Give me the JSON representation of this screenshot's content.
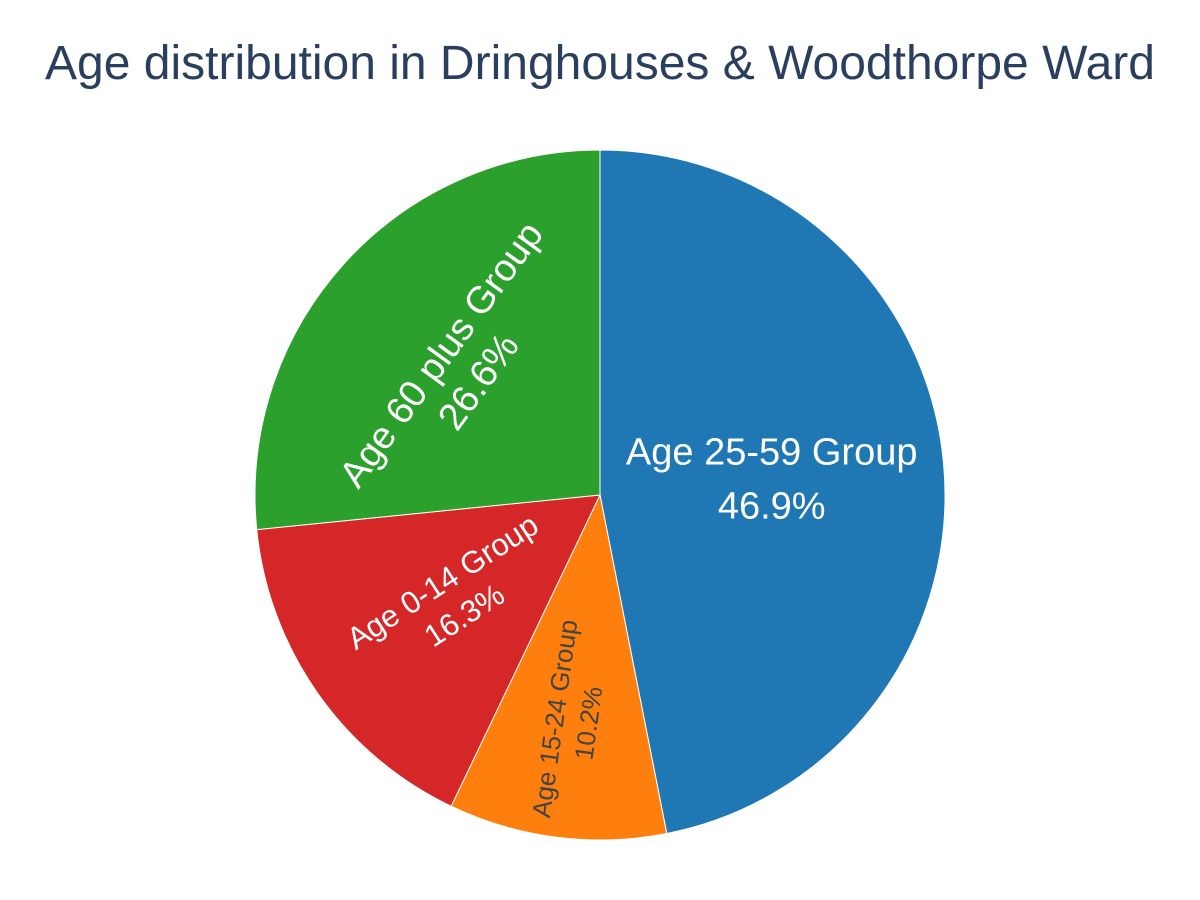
{
  "chart_data": {
    "type": "pie",
    "title": "Age distribution in Dringhouses & Woodthorpe Ward",
    "slices": [
      {
        "label": "Age 25-59 Group",
        "value": 46.9,
        "percent_text": "46.9%",
        "color": "#1f77b4",
        "text_color": "#ffffff"
      },
      {
        "label": "Age 15-24 Group",
        "value": 10.2,
        "percent_text": "10.2%",
        "color": "#ff7f0e",
        "text_color": "#444444"
      },
      {
        "label": "Age 0-14 Group",
        "value": 16.3,
        "percent_text": "16.3%",
        "color": "#d62728",
        "text_color": "#ffffff"
      },
      {
        "label": "Age 60 plus Group",
        "value": 26.6,
        "percent_text": "26.6%",
        "color": "#2ca02c",
        "text_color": "#ffffff"
      }
    ],
    "direction": "clockwise",
    "start_angle": "top",
    "legend": "none"
  },
  "colors": {
    "title": "#2a3f5f",
    "background": "#ffffff"
  }
}
